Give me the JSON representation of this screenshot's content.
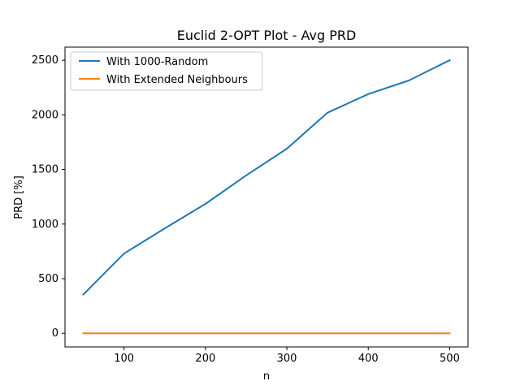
{
  "chart_data": {
    "type": "line",
    "title": "Euclid 2-OPT Plot - Avg PRD",
    "xlabel": "n",
    "ylabel": "PRD [%]",
    "x": [
      50,
      100,
      150,
      200,
      250,
      300,
      350,
      400,
      450,
      500
    ],
    "xlim": [
      27.5,
      522.5
    ],
    "ylim": [
      -125,
      2620
    ],
    "xticks": [
      100,
      200,
      300,
      400,
      500
    ],
    "yticks": [
      0,
      500,
      1000,
      1500,
      2000,
      2500
    ],
    "grid": false,
    "legend_position": "top-left",
    "series": [
      {
        "name": "With 1000-Random",
        "color": "#1f77b4",
        "values": [
          355,
          730,
          960,
          1185,
          1445,
          1690,
          2020,
          2190,
          2315,
          2500
        ]
      },
      {
        "name": "With Extended Neighbours",
        "color": "#ff7f0e",
        "values": [
          0,
          0,
          0,
          0,
          0,
          0,
          0,
          0,
          0,
          0
        ]
      }
    ]
  }
}
